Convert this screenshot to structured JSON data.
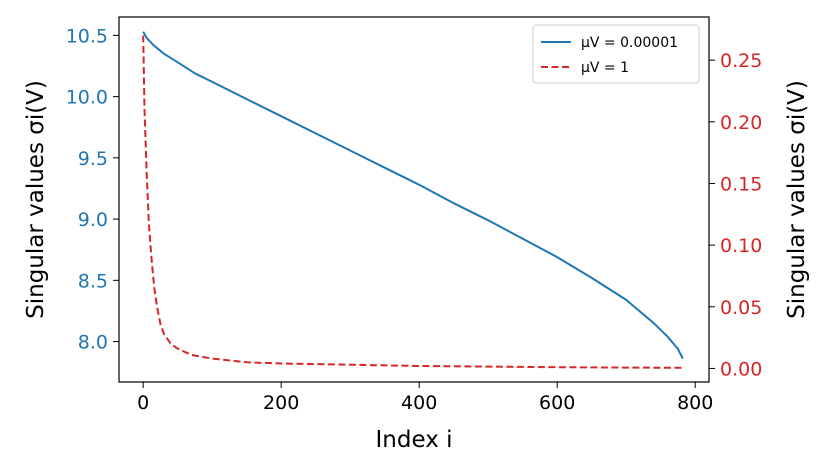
{
  "chart_data": {
    "type": "line",
    "xlabel": "Index i",
    "ylabel_left": "Singular values σi(V)",
    "ylabel_right": "Singular values σi(V)",
    "xlim": [
      -35,
      820
    ],
    "ylim_left": [
      7.67,
      10.65
    ],
    "ylim_right": [
      -0.011,
      0.285
    ],
    "x_ticks": [
      0,
      200,
      400,
      600,
      800
    ],
    "x_tick_labels": [
      "0",
      "200",
      "400",
      "600",
      "800"
    ],
    "y_left_ticks": [
      8.0,
      8.5,
      9.0,
      9.5,
      10.0,
      10.5
    ],
    "y_left_tick_labels": [
      "8.0",
      "8.5",
      "9.0",
      "9.5",
      "10.0",
      "10.5"
    ],
    "y_right_ticks": [
      0.0,
      0.05,
      0.1,
      0.15,
      0.2,
      0.25
    ],
    "y_right_tick_labels": [
      "0.00",
      "0.05",
      "0.10",
      "0.15",
      "0.20",
      "0.25"
    ],
    "legend_position": "top-right",
    "colors": {
      "left_axis": "#1f77b4",
      "right_axis": "#d62728"
    },
    "series": [
      {
        "name": "μV = 0.00001",
        "axis": "left",
        "style": "solid",
        "color": "#1f77b4",
        "x": [
          0,
          5,
          15,
          30,
          50,
          75,
          100,
          150,
          200,
          250,
          300,
          350,
          400,
          450,
          500,
          550,
          600,
          650,
          700,
          740,
          760,
          775,
          782
        ],
        "y": [
          10.53,
          10.48,
          10.42,
          10.35,
          10.28,
          10.19,
          10.12,
          9.98,
          9.84,
          9.7,
          9.56,
          9.42,
          9.28,
          9.13,
          8.99,
          8.84,
          8.69,
          8.52,
          8.34,
          8.15,
          8.04,
          7.94,
          7.86
        ]
      },
      {
        "name": "μV = 1",
        "axis": "right",
        "style": "dashed",
        "color": "#d62728",
        "x": [
          0,
          2,
          5,
          8,
          12,
          16,
          20,
          25,
          30,
          40,
          50,
          70,
          100,
          150,
          200,
          300,
          400,
          500,
          600,
          700,
          782
        ],
        "y": [
          0.27,
          0.21,
          0.16,
          0.12,
          0.09,
          0.066,
          0.05,
          0.036,
          0.028,
          0.02,
          0.016,
          0.011,
          0.008,
          0.005,
          0.004,
          0.003,
          0.002,
          0.0015,
          0.001,
          0.0007,
          0.0005
        ]
      }
    ]
  }
}
